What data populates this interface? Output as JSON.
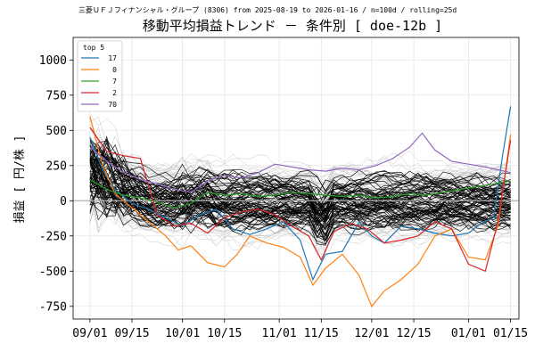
{
  "chart_data": {
    "type": "line",
    "subtitle": "三菱ＵＦＪフィナンシャル・グループ (8306) from 2025-08-19 to 2026-01-16 / n=100d / rolling=25d",
    "title": "移動平均損益トレンド － 条件別 [ doe-12b ]",
    "ylabel": "損益 [ 円/株 ]",
    "xlabel": "",
    "ylim": [
      -840,
      1160
    ],
    "xlim": [
      -4,
      102
    ],
    "yticks": [
      -750,
      -500,
      -250,
      0,
      250,
      500,
      750,
      1000
    ],
    "xticks": [
      {
        "x": 0,
        "label": "09/01"
      },
      {
        "x": 10,
        "label": "09/15"
      },
      {
        "x": 22,
        "label": "10/01"
      },
      {
        "x": 32,
        "label": "10/15"
      },
      {
        "x": 45,
        "label": "11/01"
      },
      {
        "x": 55,
        "label": "11/15"
      },
      {
        "x": 67,
        "label": "12/01"
      },
      {
        "x": 77,
        "label": "12/15"
      },
      {
        "x": 90,
        "label": "01/01"
      },
      {
        "x": 100,
        "label": "01/15"
      }
    ],
    "grid": true,
    "zero_line": 0,
    "legend": {
      "title": "top 5",
      "position": "top-left"
    },
    "background_band": {
      "count_gray": 60,
      "count_black": 70,
      "note": "many unlabeled conditions, gray and black thin lines"
    },
    "series": [
      {
        "name": "17",
        "color": "#1f77b4",
        "x": [
          0,
          3,
          6,
          10,
          14,
          18,
          22,
          26,
          30,
          34,
          38,
          42,
          46,
          50,
          53,
          56,
          60,
          64,
          67,
          70,
          74,
          78,
          82,
          86,
          90,
          93,
          96,
          98,
          100
        ],
        "values": [
          450,
          220,
          80,
          -20,
          -60,
          -120,
          -180,
          -100,
          -60,
          -200,
          -240,
          -200,
          -150,
          -280,
          -560,
          -380,
          -360,
          -150,
          -250,
          -300,
          -180,
          -200,
          -230,
          -250,
          -230,
          -160,
          -120,
          300,
          670
        ]
      },
      {
        "name": "0",
        "color": "#ff7f0e",
        "x": [
          0,
          3,
          6,
          10,
          14,
          18,
          21,
          24,
          28,
          32,
          35,
          38,
          42,
          46,
          50,
          53,
          56,
          60,
          64,
          66,
          67,
          70,
          74,
          78,
          82,
          86,
          90,
          94,
          97,
          100
        ],
        "values": [
          600,
          250,
          50,
          -50,
          -150,
          -250,
          -350,
          -320,
          -440,
          -470,
          -380,
          -250,
          -300,
          -330,
          -400,
          -600,
          -480,
          -380,
          -530,
          -680,
          -750,
          -640,
          -560,
          -450,
          -250,
          -200,
          -400,
          -420,
          -180,
          470
        ]
      },
      {
        "name": "7",
        "color": "#2ca02c",
        "x": [
          0,
          4,
          8,
          12,
          16,
          20,
          24,
          28,
          32,
          36,
          40,
          44,
          48,
          52,
          56,
          60,
          64,
          68,
          72,
          76,
          80,
          84,
          88,
          92,
          96,
          100
        ],
        "values": [
          150,
          80,
          40,
          20,
          -10,
          -50,
          -20,
          60,
          40,
          50,
          30,
          40,
          60,
          50,
          40,
          30,
          40,
          20,
          30,
          50,
          40,
          60,
          80,
          100,
          120,
          140
        ]
      },
      {
        "name": "2",
        "color": "#d62728",
        "x": [
          0,
          4,
          8,
          12,
          16,
          20,
          24,
          28,
          32,
          36,
          40,
          44,
          48,
          52,
          55,
          58,
          62,
          66,
          70,
          74,
          78,
          82,
          86,
          90,
          94,
          97,
          100
        ],
        "values": [
          520,
          350,
          320,
          300,
          -100,
          -180,
          -160,
          -230,
          -120,
          -80,
          -60,
          -100,
          -180,
          -250,
          -420,
          -220,
          -160,
          -200,
          -300,
          -280,
          -250,
          -150,
          -200,
          -450,
          -500,
          -150,
          430
        ]
      },
      {
        "name": "70",
        "color": "#9467bd",
        "x": [
          0,
          4,
          8,
          12,
          16,
          20,
          24,
          28,
          32,
          36,
          40,
          44,
          48,
          52,
          56,
          60,
          64,
          68,
          72,
          76,
          79,
          82,
          86,
          90,
          94,
          97,
          100
        ],
        "values": [
          380,
          280,
          200,
          150,
          120,
          80,
          60,
          140,
          180,
          160,
          200,
          260,
          240,
          220,
          210,
          230,
          220,
          250,
          300,
          380,
          480,
          360,
          280,
          260,
          240,
          220,
          200
        ]
      }
    ]
  }
}
